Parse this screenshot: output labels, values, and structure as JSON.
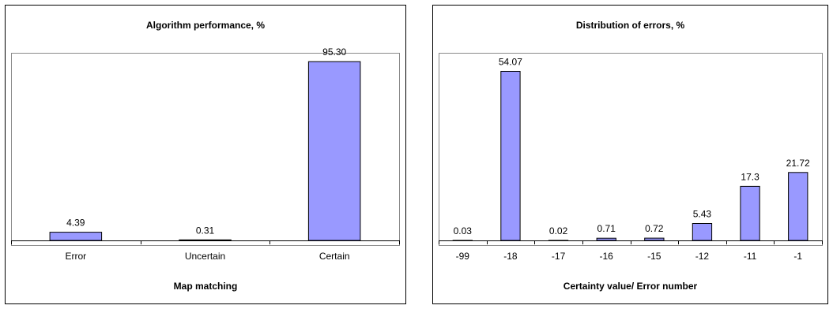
{
  "chart_data": [
    {
      "type": "bar",
      "title": "Algorithm performance, %",
      "xlabel": "Map matching",
      "ylabel": "",
      "categories": [
        "Error",
        "Uncertain",
        "Certain"
      ],
      "values": [
        4.39,
        0.31,
        95.3
      ],
      "value_labels": [
        "4.39",
        "0.31",
        "95.30"
      ],
      "ylim": [
        0,
        100
      ],
      "grid": false,
      "bar_color": "#9999ff"
    },
    {
      "type": "bar",
      "title": "Distribution of errors, %",
      "xlabel": "Certainty value/ Error number",
      "ylabel": "",
      "categories": [
        "-99",
        "-18",
        "-17",
        "-16",
        "-15",
        "-12",
        "-11",
        "-1"
      ],
      "values": [
        0.03,
        54.07,
        0.02,
        0.71,
        0.72,
        5.43,
        17.3,
        21.72
      ],
      "value_labels": [
        "0.03",
        "54.07",
        "0.02",
        "0.71",
        "0.72",
        "5.43",
        "17.3",
        "21.72"
      ],
      "ylim": [
        0,
        60
      ],
      "grid": false,
      "bar_color": "#9999ff"
    }
  ]
}
